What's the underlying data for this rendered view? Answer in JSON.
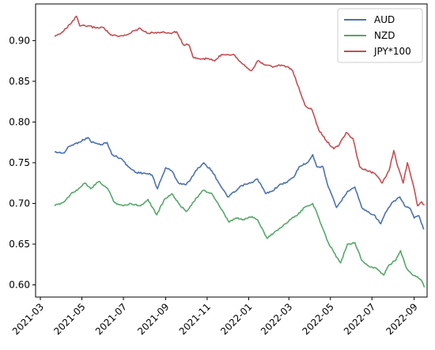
{
  "chart_data": {
    "type": "line",
    "x_axis": {
      "type": "date",
      "range": [
        "2021-02-22",
        "2022-09-20"
      ],
      "tick_labels": [
        "2021-03",
        "2021-05",
        "2021-07",
        "2021-09",
        "2021-11",
        "2022-01",
        "2022-03",
        "2022-05",
        "2022-07",
        "2022-09"
      ],
      "tick_dates": [
        "2021-03-01",
        "2021-05-01",
        "2021-07-01",
        "2021-09-01",
        "2021-11-01",
        "2022-01-01",
        "2022-03-01",
        "2022-05-01",
        "2022-07-01",
        "2022-09-01"
      ]
    },
    "y_axis": {
      "range": [
        0.585,
        0.945
      ],
      "ticks": [
        0.6,
        0.65,
        0.7,
        0.75,
        0.8,
        0.85,
        0.9
      ],
      "tick_labels": [
        "0.60",
        "0.65",
        "0.70",
        "0.75",
        "0.80",
        "0.85",
        "0.90"
      ]
    },
    "grid": false,
    "legend": {
      "position": "top-right"
    },
    "series": [
      {
        "name": "AUD",
        "color": "#4c72b0",
        "points": [
          [
            "2021-03-22",
            0.763
          ],
          [
            "2021-04-05",
            0.762
          ],
          [
            "2021-04-12",
            0.77
          ],
          [
            "2021-04-26",
            0.775
          ],
          [
            "2021-05-10",
            0.781
          ],
          [
            "2021-05-14",
            0.776
          ],
          [
            "2021-05-28",
            0.772
          ],
          [
            "2021-06-07",
            0.775
          ],
          [
            "2021-06-14",
            0.76
          ],
          [
            "2021-06-28",
            0.755
          ],
          [
            "2021-07-08",
            0.745
          ],
          [
            "2021-07-20",
            0.738
          ],
          [
            "2021-08-02",
            0.737
          ],
          [
            "2021-08-12",
            0.735
          ],
          [
            "2021-08-20",
            0.718
          ],
          [
            "2021-09-01",
            0.744
          ],
          [
            "2021-09-10",
            0.74
          ],
          [
            "2021-09-20",
            0.725
          ],
          [
            "2021-10-01",
            0.723
          ],
          [
            "2021-10-08",
            0.73
          ],
          [
            "2021-10-15",
            0.74
          ],
          [
            "2021-10-27",
            0.75
          ],
          [
            "2021-11-08",
            0.74
          ],
          [
            "2021-11-22",
            0.72
          ],
          [
            "2021-12-01",
            0.708
          ],
          [
            "2021-12-13",
            0.715
          ],
          [
            "2021-12-22",
            0.722
          ],
          [
            "2022-01-04",
            0.725
          ],
          [
            "2022-01-14",
            0.73
          ],
          [
            "2022-01-26",
            0.712
          ],
          [
            "2022-02-04",
            0.715
          ],
          [
            "2022-02-14",
            0.722
          ],
          [
            "2022-02-25",
            0.726
          ],
          [
            "2022-03-08",
            0.732
          ],
          [
            "2022-03-16",
            0.745
          ],
          [
            "2022-03-28",
            0.75
          ],
          [
            "2022-04-05",
            0.76
          ],
          [
            "2022-04-11",
            0.745
          ],
          [
            "2022-04-20",
            0.745
          ],
          [
            "2022-04-28",
            0.72
          ],
          [
            "2022-05-10",
            0.695
          ],
          [
            "2022-05-16",
            0.702
          ],
          [
            "2022-05-26",
            0.715
          ],
          [
            "2022-06-06",
            0.72
          ],
          [
            "2022-06-16",
            0.695
          ],
          [
            "2022-06-24",
            0.69
          ],
          [
            "2022-07-04",
            0.686
          ],
          [
            "2022-07-14",
            0.675
          ],
          [
            "2022-07-22",
            0.69
          ],
          [
            "2022-08-01",
            0.702
          ],
          [
            "2022-08-11",
            0.708
          ],
          [
            "2022-08-18",
            0.697
          ],
          [
            "2022-08-26",
            0.694
          ],
          [
            "2022-09-01",
            0.682
          ],
          [
            "2022-09-08",
            0.685
          ],
          [
            "2022-09-15",
            0.668
          ]
        ]
      },
      {
        "name": "NZD",
        "color": "#55a868",
        "points": [
          [
            "2021-03-22",
            0.697
          ],
          [
            "2021-04-05",
            0.702
          ],
          [
            "2021-04-15",
            0.712
          ],
          [
            "2021-04-26",
            0.718
          ],
          [
            "2021-05-06",
            0.725
          ],
          [
            "2021-05-14",
            0.718
          ],
          [
            "2021-05-26",
            0.727
          ],
          [
            "2021-06-08",
            0.718
          ],
          [
            "2021-06-18",
            0.701
          ],
          [
            "2021-07-01",
            0.697
          ],
          [
            "2021-07-12",
            0.7
          ],
          [
            "2021-07-26",
            0.697
          ],
          [
            "2021-08-06",
            0.705
          ],
          [
            "2021-08-19",
            0.686
          ],
          [
            "2021-08-30",
            0.705
          ],
          [
            "2021-09-10",
            0.712
          ],
          [
            "2021-09-20",
            0.7
          ],
          [
            "2021-10-01",
            0.69
          ],
          [
            "2021-10-12",
            0.702
          ],
          [
            "2021-10-26",
            0.716
          ],
          [
            "2021-11-08",
            0.712
          ],
          [
            "2021-11-20",
            0.695
          ],
          [
            "2021-12-03",
            0.677
          ],
          [
            "2021-12-13",
            0.682
          ],
          [
            "2021-12-24",
            0.68
          ],
          [
            "2022-01-06",
            0.684
          ],
          [
            "2022-01-14",
            0.68
          ],
          [
            "2022-01-28",
            0.657
          ],
          [
            "2022-02-08",
            0.665
          ],
          [
            "2022-02-20",
            0.672
          ],
          [
            "2022-03-02",
            0.68
          ],
          [
            "2022-03-14",
            0.686
          ],
          [
            "2022-03-24",
            0.695
          ],
          [
            "2022-04-05",
            0.7
          ],
          [
            "2022-04-14",
            0.682
          ],
          [
            "2022-04-26",
            0.655
          ],
          [
            "2022-05-06",
            0.64
          ],
          [
            "2022-05-16",
            0.627
          ],
          [
            "2022-05-26",
            0.65
          ],
          [
            "2022-06-06",
            0.652
          ],
          [
            "2022-06-16",
            0.63
          ],
          [
            "2022-06-28",
            0.622
          ],
          [
            "2022-07-08",
            0.62
          ],
          [
            "2022-07-18",
            0.612
          ],
          [
            "2022-07-27",
            0.625
          ],
          [
            "2022-08-05",
            0.63
          ],
          [
            "2022-08-12",
            0.642
          ],
          [
            "2022-08-20",
            0.622
          ],
          [
            "2022-08-30",
            0.612
          ],
          [
            "2022-09-06",
            0.61
          ],
          [
            "2022-09-12",
            0.605
          ],
          [
            "2022-09-16",
            0.597
          ]
        ]
      },
      {
        "name": "JPY*100",
        "color": "#c44e52",
        "points": [
          [
            "2021-03-22",
            0.905
          ],
          [
            "2021-03-29",
            0.908
          ],
          [
            "2021-04-08",
            0.915
          ],
          [
            "2021-04-19",
            0.925
          ],
          [
            "2021-04-23",
            0.93
          ],
          [
            "2021-04-28",
            0.918
          ],
          [
            "2021-05-10",
            0.918
          ],
          [
            "2021-05-20",
            0.916
          ],
          [
            "2021-06-02",
            0.916
          ],
          [
            "2021-06-12",
            0.907
          ],
          [
            "2021-06-24",
            0.905
          ],
          [
            "2021-07-06",
            0.907
          ],
          [
            "2021-07-16",
            0.912
          ],
          [
            "2021-07-26",
            0.915
          ],
          [
            "2021-08-06",
            0.909
          ],
          [
            "2021-08-17",
            0.91
          ],
          [
            "2021-08-30",
            0.91
          ],
          [
            "2021-09-08",
            0.909
          ],
          [
            "2021-09-17",
            0.911
          ],
          [
            "2021-09-27",
            0.895
          ],
          [
            "2021-10-05",
            0.895
          ],
          [
            "2021-10-11",
            0.88
          ],
          [
            "2021-10-22",
            0.877
          ],
          [
            "2021-11-02",
            0.878
          ],
          [
            "2021-11-12",
            0.875
          ],
          [
            "2021-11-22",
            0.883
          ],
          [
            "2021-12-01",
            0.883
          ],
          [
            "2021-12-10",
            0.883
          ],
          [
            "2021-12-20",
            0.874
          ],
          [
            "2021-12-28",
            0.868
          ],
          [
            "2022-01-05",
            0.863
          ],
          [
            "2022-01-14",
            0.875
          ],
          [
            "2022-01-26",
            0.87
          ],
          [
            "2022-02-07",
            0.868
          ],
          [
            "2022-02-18",
            0.87
          ],
          [
            "2022-03-01",
            0.867
          ],
          [
            "2022-03-07",
            0.862
          ],
          [
            "2022-03-14",
            0.845
          ],
          [
            "2022-03-25",
            0.82
          ],
          [
            "2022-04-04",
            0.815
          ],
          [
            "2022-04-14",
            0.79
          ],
          [
            "2022-04-25",
            0.777
          ],
          [
            "2022-05-06",
            0.767
          ],
          [
            "2022-05-14",
            0.772
          ],
          [
            "2022-05-24",
            0.787
          ],
          [
            "2022-06-03",
            0.78
          ],
          [
            "2022-06-13",
            0.745
          ],
          [
            "2022-06-24",
            0.74
          ],
          [
            "2022-07-05",
            0.737
          ],
          [
            "2022-07-16",
            0.725
          ],
          [
            "2022-07-26",
            0.74
          ],
          [
            "2022-08-02",
            0.765
          ],
          [
            "2022-08-08",
            0.745
          ],
          [
            "2022-08-16",
            0.725
          ],
          [
            "2022-08-22",
            0.75
          ],
          [
            "2022-09-01",
            0.718
          ],
          [
            "2022-09-06",
            0.697
          ],
          [
            "2022-09-12",
            0.702
          ],
          [
            "2022-09-16",
            0.698
          ]
        ]
      }
    ]
  }
}
